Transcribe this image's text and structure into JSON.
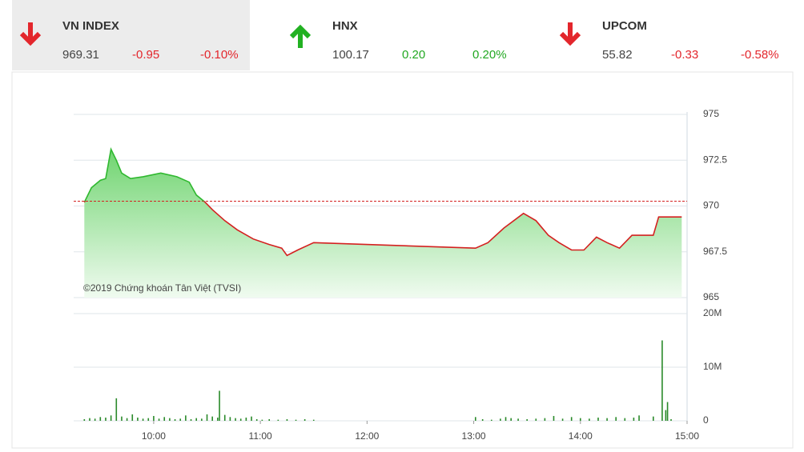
{
  "header": {
    "indices": [
      {
        "name": "VN INDEX",
        "value": "969.31",
        "change": "-0.95",
        "percent": "-0.10%"
      },
      {
        "name": "HNX",
        "value": "100.17",
        "change": "0.20",
        "percent": "0.20%"
      },
      {
        "name": "UPCOM",
        "value": "55.82",
        "change": "-0.33",
        "percent": "-0.58%"
      }
    ]
  },
  "chart_data": [
    {
      "type": "line",
      "annotation": "©2019 Chứng khoán Tân Việt (TVSI)",
      "x": [
        "09:21",
        "09:25",
        "09:30",
        "09:33",
        "09:36",
        "09:39",
        "09:42",
        "09:47",
        "09:54",
        "10:04",
        "10:13",
        "10:20",
        "10:24",
        "10:29",
        "10:33",
        "10:40",
        "10:47",
        "10:56",
        "11:05",
        "11:12",
        "11:15",
        "11:21",
        "11:30",
        "13:01",
        "13:08",
        "13:17",
        "13:28",
        "13:35",
        "13:42",
        "13:48",
        "13:55",
        "14:02",
        "14:09",
        "14:15",
        "14:22",
        "14:29",
        "14:41",
        "14:44",
        "14:57"
      ],
      "values": [
        970.2,
        971.0,
        971.4,
        971.5,
        973.1,
        972.5,
        971.8,
        971.5,
        971.6,
        971.8,
        971.6,
        971.3,
        970.6,
        970.2,
        969.8,
        969.2,
        968.7,
        968.2,
        967.9,
        967.7,
        967.3,
        967.6,
        968.0,
        967.7,
        968.0,
        968.8,
        969.6,
        969.2,
        968.4,
        968.0,
        967.6,
        967.6,
        968.3,
        968.0,
        967.7,
        968.4,
        968.4,
        969.4,
        969.4
      ],
      "xlim": [
        "09:15",
        "15:00"
      ],
      "ylim": [
        965,
        975
      ],
      "yticks": [
        965,
        967.5,
        970,
        972.5,
        975
      ],
      "reference": 970.26,
      "color": "#d42020",
      "up_color": "#2fb82f",
      "grid": true
    },
    {
      "type": "bar",
      "x": [
        "09:21",
        "09:24",
        "09:27",
        "09:30",
        "09:33",
        "09:36",
        "09:39",
        "09:42",
        "09:45",
        "09:48",
        "09:51",
        "09:54",
        "09:57",
        "10:00",
        "10:03",
        "10:06",
        "10:09",
        "10:12",
        "10:15",
        "10:18",
        "10:21",
        "10:24",
        "10:27",
        "10:30",
        "10:33",
        "10:36",
        "10:37",
        "10:40",
        "10:43",
        "10:46",
        "10:49",
        "10:52",
        "10:55",
        "10:58",
        "11:01",
        "11:05",
        "11:10",
        "11:15",
        "11:20",
        "11:25",
        "11:30",
        "13:01",
        "13:05",
        "13:10",
        "13:15",
        "13:18",
        "13:21",
        "13:25",
        "13:30",
        "13:35",
        "13:40",
        "13:45",
        "13:50",
        "13:55",
        "14:00",
        "14:05",
        "14:10",
        "14:15",
        "14:20",
        "14:25",
        "14:30",
        "14:33",
        "14:41",
        "14:46",
        "14:48",
        "14:49",
        "14:51"
      ],
      "values": [
        300000,
        500000,
        400000,
        700000,
        600000,
        1000000,
        4200000,
        800000,
        500000,
        1200000,
        600000,
        400000,
        500000,
        900000,
        400000,
        700000,
        500000,
        300000,
        400000,
        1000000,
        300000,
        500000,
        400000,
        1200000,
        800000,
        600000,
        5600000,
        1100000,
        700000,
        500000,
        400000,
        600000,
        800000,
        300000,
        200000,
        300000,
        200000,
        300000,
        200000,
        300000,
        200000,
        700000,
        300000,
        200000,
        400000,
        700000,
        500000,
        400000,
        300000,
        400000,
        500000,
        900000,
        400000,
        700000,
        500000,
        400000,
        600000,
        500000,
        700000,
        500000,
        600000,
        1000000,
        800000,
        15000000,
        2000000,
        3500000,
        300000
      ],
      "xlim": [
        "09:15",
        "15:00"
      ],
      "xticks": [
        "10:00",
        "11:00",
        "12:00",
        "13:00",
        "14:00",
        "15:00"
      ],
      "ylim": [
        0,
        20000000
      ],
      "yticks": [
        0,
        {
          "value": 10000000,
          "label": "10M"
        },
        {
          "value": 20000000,
          "label": "20M"
        }
      ],
      "color": "#2a8a2a",
      "grid": true
    }
  ]
}
